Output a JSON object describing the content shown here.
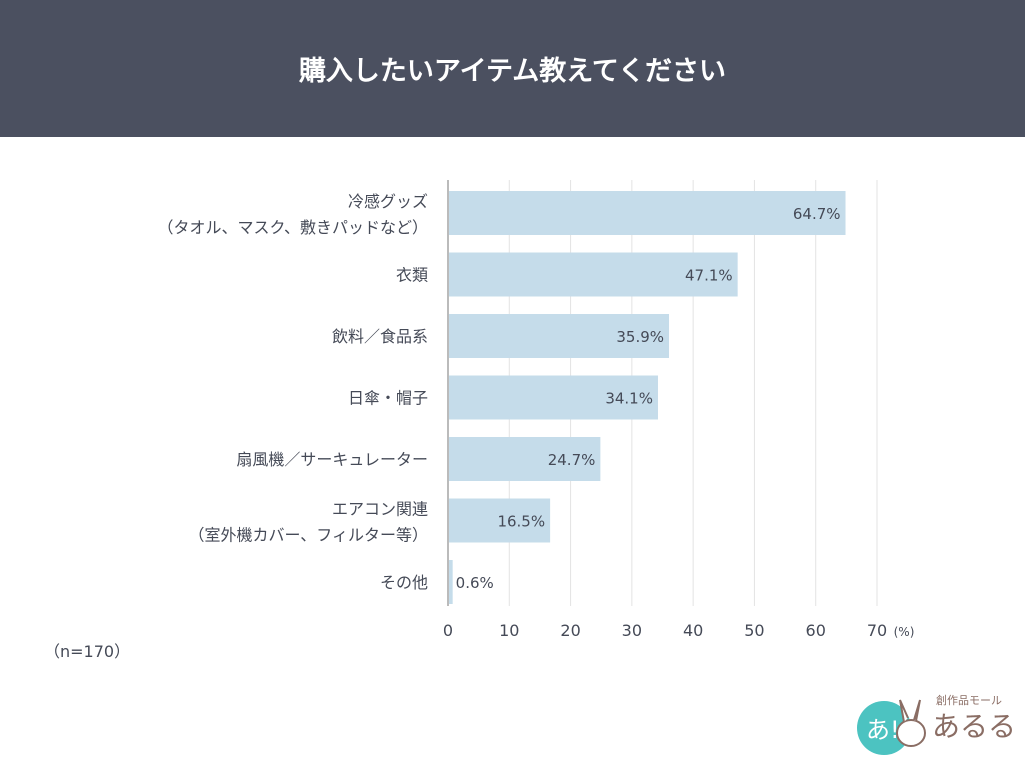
{
  "header": {
    "title": "購入したいアイテム教えてください"
  },
  "chart_data": {
    "type": "bar",
    "orientation": "horizontal",
    "title": "購入したいアイテム教えてください",
    "categories": [
      [
        "冷感グッズ",
        "（タオル、マスク、敷きパッドなど）"
      ],
      [
        "衣類"
      ],
      [
        "飲料／食品系"
      ],
      [
        "日傘・帽子"
      ],
      [
        "扇風機／サーキュレーター"
      ],
      [
        "エアコン関連",
        "（室外機カバー、フィルター等）"
      ],
      [
        "その他"
      ]
    ],
    "values": [
      64.7,
      47.1,
      35.9,
      34.1,
      24.7,
      16.5,
      0.6
    ],
    "data_labels": [
      "64.7%",
      "47.1%",
      "35.9%",
      "34.1%",
      "24.7%",
      "16.5%",
      "0.6%"
    ],
    "xlim": [
      0,
      70
    ],
    "xticks": [
      "0",
      "10",
      "20",
      "30",
      "40",
      "50",
      "60",
      "70"
    ],
    "xunit": "(%)",
    "grid": true,
    "bar_color": "#c5dcea"
  },
  "note": "（n=170）",
  "logo": {
    "text": "創作品モール あるる"
  }
}
